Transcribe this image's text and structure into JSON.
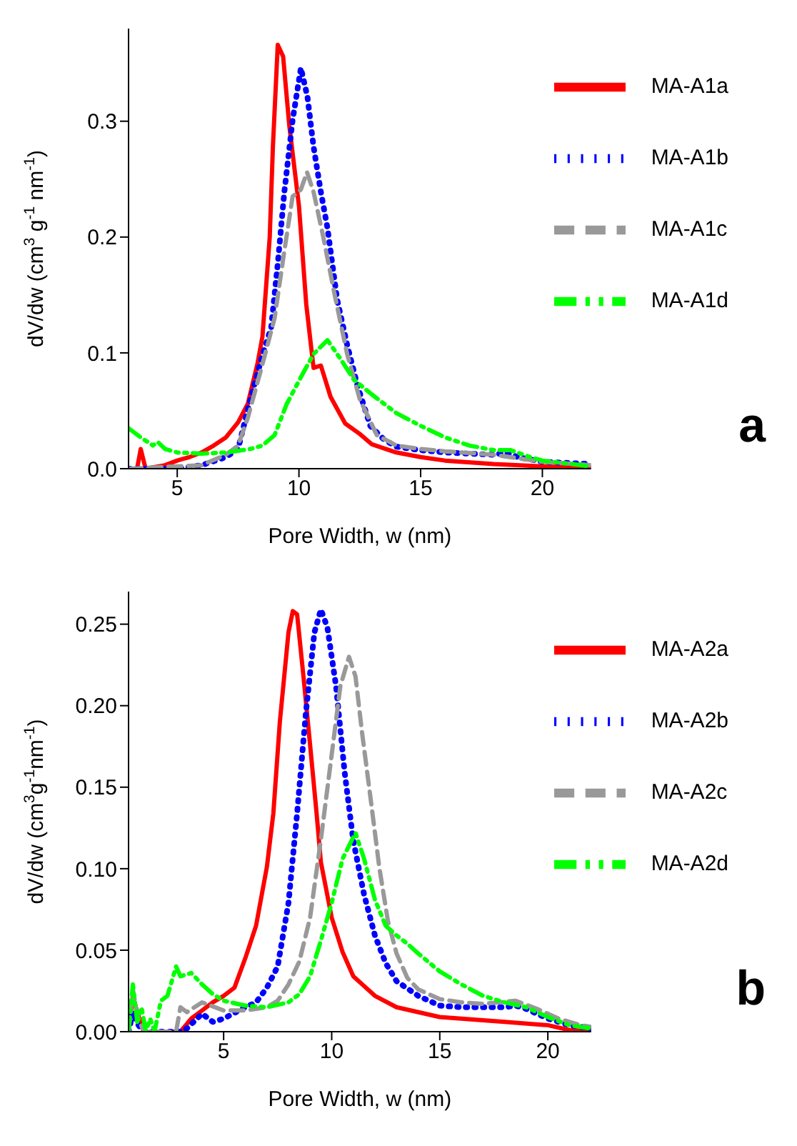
{
  "chart_data": [
    {
      "type": "line",
      "xlabel": "Pore Width, w (nm)",
      "ylabel": "dV/dw (cm$^{3}$ g$^{-1}$ nm$^{-1}$)",
      "annotations": [
        "a"
      ],
      "legend": "top right",
      "grid": false,
      "xlim": [
        3,
        22
      ],
      "xticks": [
        5,
        10,
        15,
        20
      ],
      "ylim": [
        0,
        0.38
      ],
      "yticks": [
        {
          "value": 0,
          "label": "0.0"
        },
        {
          "value": 0.1,
          "label": "0.1"
        },
        {
          "value": 0.2,
          "label": "0.2"
        },
        {
          "value": 0.3,
          "label": "0.3"
        }
      ],
      "series": [
        {
          "name": "MA-A1a",
          "color": "#ff0000",
          "line_style": "solid",
          "x": [
            3,
            3.35,
            3.5,
            3.7,
            4.5,
            5,
            5.5,
            6,
            6.5,
            7,
            7.5,
            7.9,
            8.3,
            8.5,
            8.8,
            8.93,
            9.13,
            9.35,
            9.6,
            10,
            10.3,
            10.6,
            10.9,
            11.3,
            11.9,
            12.5,
            13,
            14,
            15,
            16,
            18,
            20,
            22
          ],
          "values": [
            0,
            0,
            0.017,
            0,
            0.003,
            0.007,
            0.01,
            0.014,
            0.02,
            0.027,
            0.04,
            0.056,
            0.091,
            0.114,
            0.2,
            0.278,
            0.366,
            0.356,
            0.297,
            0.227,
            0.142,
            0.087,
            0.089,
            0.062,
            0.039,
            0.03,
            0.021,
            0.014,
            0.01,
            0.007,
            0.004,
            0.002,
            0.001
          ]
        },
        {
          "name": "MA-A1b",
          "color": "#0000ff",
          "line_style": "dotted",
          "x": [
            3,
            5,
            6,
            7,
            7.5,
            7.91,
            8.46,
            8.86,
            9.13,
            9.4,
            9.74,
            10.08,
            10.35,
            10.6,
            10.9,
            11.17,
            11.57,
            11.98,
            12.4,
            12.93,
            13.5,
            14,
            15,
            16,
            17,
            18,
            18.5,
            19,
            20,
            22
          ],
          "values": [
            0,
            0,
            0.003,
            0.01,
            0.017,
            0.052,
            0.095,
            0.122,
            0.177,
            0.239,
            0.301,
            0.346,
            0.321,
            0.278,
            0.239,
            0.208,
            0.146,
            0.107,
            0.072,
            0.037,
            0.025,
            0.019,
            0.016,
            0.014,
            0.013,
            0.012,
            0.014,
            0.01,
            0.006,
            0.004
          ]
        },
        {
          "name": "MA-A1c",
          "color": "#999999",
          "line_style": "dashed",
          "x": [
            3,
            6,
            7,
            7.5,
            7.9,
            8.46,
            9,
            9.4,
            9.74,
            10.08,
            10.33,
            10.6,
            11,
            11.44,
            11.98,
            12.5,
            13.2,
            14,
            15,
            16,
            18,
            20,
            22
          ],
          "values": [
            0,
            0.003,
            0.012,
            0.02,
            0.044,
            0.087,
            0.13,
            0.188,
            0.235,
            0.241,
            0.256,
            0.239,
            0.2,
            0.153,
            0.099,
            0.06,
            0.029,
            0.02,
            0.017,
            0.015,
            0.012,
            0.006,
            0.003
          ]
        },
        {
          "name": "MA-A1d",
          "color": "#00ff00",
          "line_style": "dashdotdot",
          "x": [
            3,
            3.5,
            4,
            4.2,
            4.5,
            5,
            6,
            7,
            8,
            8.5,
            9,
            9.5,
            10.08,
            10.6,
            11.17,
            11.7,
            12.25,
            13,
            14,
            15,
            16,
            17,
            18,
            18.7,
            19.5,
            20,
            22
          ],
          "values": [
            0.035,
            0.027,
            0.02,
            0.023,
            0.017,
            0.014,
            0.013,
            0.014,
            0.017,
            0.02,
            0.029,
            0.056,
            0.079,
            0.099,
            0.111,
            0.095,
            0.077,
            0.064,
            0.048,
            0.037,
            0.027,
            0.02,
            0.016,
            0.016,
            0.01,
            0.007,
            0.002
          ]
        }
      ]
    },
    {
      "type": "line",
      "xlabel": "Pore Width, w (nm)",
      "ylabel": "dV/dw (cm$^{3}$g$^{-1}$nm$^{-1}$)",
      "annotations": [
        "b"
      ],
      "legend": "top right",
      "grid": false,
      "xlim": [
        0.6,
        22
      ],
      "xticks": [
        5,
        10,
        15,
        20
      ],
      "ylim": [
        0,
        0.27
      ],
      "yticks": [
        {
          "value": 0,
          "label": "0.00"
        },
        {
          "value": 0.05,
          "label": "0.05"
        },
        {
          "value": 0.1,
          "label": "0.10"
        },
        {
          "value": 0.15,
          "label": "0.15"
        },
        {
          "value": 0.2,
          "label": "0.20"
        },
        {
          "value": 0.25,
          "label": "0.25"
        }
      ],
      "series": [
        {
          "name": "MA-A2a",
          "color": "#ff0000",
          "line_style": "solid",
          "x": [
            0.6,
            0.8,
            1,
            1.3,
            3,
            3.5,
            4,
            4.5,
            5,
            5.5,
            6,
            6.5,
            7,
            7.3,
            7.6,
            8,
            8.2,
            8.4,
            8.7,
            9,
            9.3,
            9.5,
            10,
            10.5,
            11,
            12,
            13,
            15,
            18,
            20,
            21,
            22
          ],
          "values": [
            0,
            0.022,
            0.012,
            0,
            0,
            0.008,
            0.013,
            0.018,
            0.022,
            0.027,
            0.045,
            0.065,
            0.101,
            0.134,
            0.19,
            0.245,
            0.258,
            0.256,
            0.217,
            0.176,
            0.134,
            0.104,
            0.07,
            0.049,
            0.034,
            0.022,
            0.015,
            0.009,
            0.006,
            0.004,
            0.001,
            0.001
          ]
        },
        {
          "name": "MA-A2b",
          "color": "#0000ff",
          "line_style": "dotted",
          "x": [
            0.6,
            0.8,
            1,
            1.3,
            3,
            3.3,
            4,
            4.5,
            5,
            6,
            6.5,
            7,
            7.5,
            8,
            8.4,
            8.8,
            9.2,
            9.5,
            9.8,
            10.2,
            10.6,
            11,
            11.5,
            12,
            12.5,
            13,
            14,
            15,
            16,
            18,
            18.5,
            19,
            20,
            21,
            22
          ],
          "values": [
            0,
            0.012,
            0.005,
            0,
            0,
            0.002,
            0.011,
            0.006,
            0.008,
            0.015,
            0.018,
            0.027,
            0.04,
            0.079,
            0.134,
            0.195,
            0.245,
            0.259,
            0.248,
            0.212,
            0.159,
            0.117,
            0.084,
            0.059,
            0.042,
            0.031,
            0.022,
            0.016,
            0.015,
            0.015,
            0.016,
            0.014,
            0.008,
            0.004,
            0.002
          ]
        },
        {
          "name": "MA-A2c",
          "color": "#999999",
          "line_style": "dashed",
          "x": [
            0.6,
            0.8,
            1,
            1.3,
            2.8,
            3,
            3.3,
            4,
            5,
            6,
            7,
            7.5,
            8,
            8.5,
            9,
            9.5,
            10,
            10.4,
            10.8,
            11.1,
            11.4,
            11.8,
            12.2,
            12.6,
            13,
            13.5,
            14,
            15,
            16,
            17,
            18.5,
            19.5,
            20.5,
            21.5,
            22
          ],
          "values": [
            0,
            0.026,
            0.01,
            0,
            0,
            0.015,
            0.012,
            0.018,
            0.013,
            0.013,
            0.015,
            0.019,
            0.029,
            0.043,
            0.07,
            0.118,
            0.17,
            0.212,
            0.23,
            0.218,
            0.184,
            0.143,
            0.101,
            0.068,
            0.048,
            0.033,
            0.026,
            0.02,
            0.018,
            0.017,
            0.019,
            0.014,
            0.008,
            0.004,
            0.003
          ]
        },
        {
          "name": "MA-A2d",
          "color": "#00ff00",
          "line_style": "dashdotdot",
          "x": [
            0.6,
            0.8,
            1,
            1.2,
            1.4,
            1.6,
            1.8,
            2.1,
            2.4,
            2.8,
            3,
            3.5,
            4,
            4.5,
            5,
            6,
            7,
            8,
            8.5,
            9,
            9.5,
            10,
            10.5,
            11.1,
            11.5,
            12,
            12.5,
            13,
            13.5,
            14,
            15,
            16,
            17,
            18,
            19,
            20,
            21,
            22
          ],
          "values": [
            0,
            0.029,
            0.006,
            0.015,
            0,
            0.008,
            0,
            0.019,
            0.022,
            0.04,
            0.034,
            0.036,
            0.029,
            0.023,
            0.019,
            0.016,
            0.015,
            0.018,
            0.023,
            0.034,
            0.056,
            0.079,
            0.106,
            0.122,
            0.106,
            0.081,
            0.065,
            0.059,
            0.054,
            0.048,
            0.037,
            0.029,
            0.022,
            0.018,
            0.015,
            0.009,
            0.004,
            0.002
          ]
        }
      ]
    }
  ]
}
